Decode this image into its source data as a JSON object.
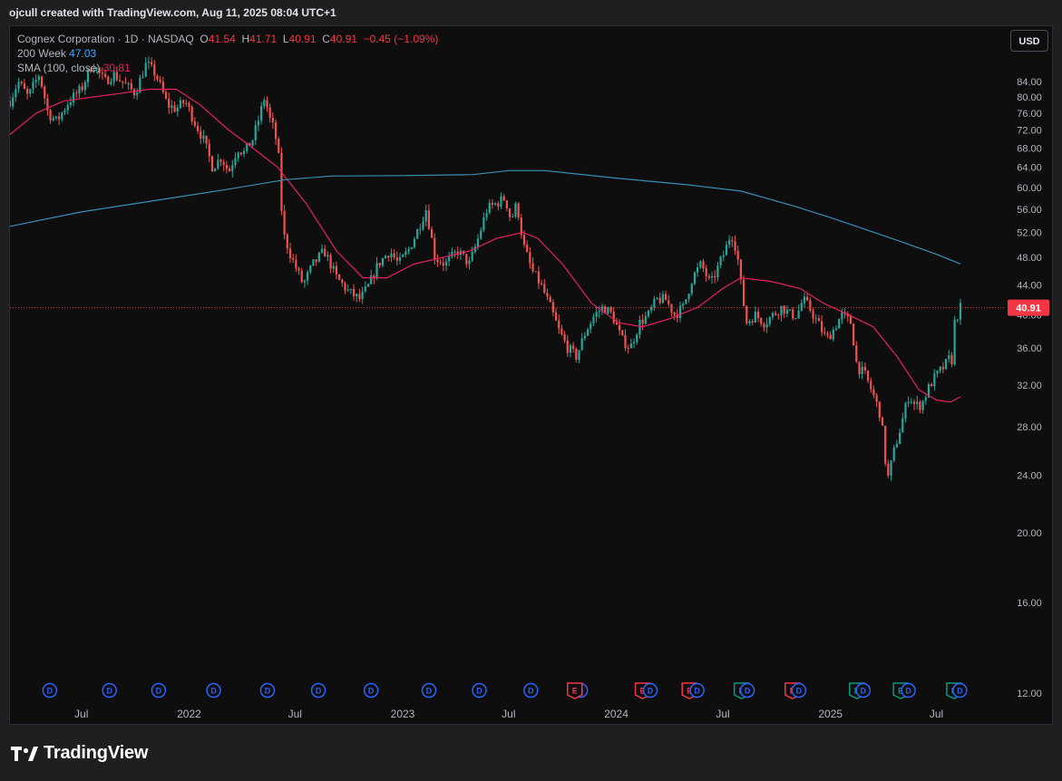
{
  "header": {
    "attribution": "ojcull created with TradingView.com, Aug 11, 2025 08:04 UTC+1"
  },
  "legend": {
    "symbol": "Cognex Corporation · 1D · NASDAQ",
    "open_label": "O",
    "open": "41.54",
    "high_label": "H",
    "high": "41.71",
    "low_label": "L",
    "low": "40.91",
    "close_label": "C",
    "close": "40.91",
    "change": "−0.45 (−1.09%)",
    "ma200_label": "200 Week",
    "ma200_value": "47.03",
    "sma_label": "SMA (100, close)",
    "sma_value": "30.81"
  },
  "toolbar": {
    "currency": "USD"
  },
  "footer": {
    "brand": "TradingView"
  },
  "colors": {
    "up": "#26a69a",
    "down": "#ef5350",
    "sma": "#e91e63",
    "ma200": "#3a8fb7",
    "last_price": "#f23645",
    "dividend": "#2962ff",
    "earnings_up": "#089981",
    "earnings_down": "#f23645"
  },
  "chart_data": {
    "type": "candlestick",
    "symbol": "Cognex Corporation",
    "interval": "1D",
    "exchange": "NASDAQ",
    "currency": "USD",
    "x_range": [
      "2021-03-01",
      "2025-08-11"
    ],
    "y_scale": "log",
    "ylim": [
      12,
      88
    ],
    "y_ticks": [
      12,
      16,
      20,
      24,
      28,
      32,
      36,
      40,
      44,
      48,
      52,
      56,
      60,
      64,
      68,
      72,
      76,
      80,
      84
    ],
    "x_ticks": [
      {
        "label": "Jul",
        "date": "2021-07-01"
      },
      {
        "label": "2022",
        "date": "2022-01-01"
      },
      {
        "label": "Jul",
        "date": "2022-07-01"
      },
      {
        "label": "2023",
        "date": "2023-01-01"
      },
      {
        "label": "Jul",
        "date": "2023-07-01"
      },
      {
        "label": "2024",
        "date": "2024-01-01"
      },
      {
        "label": "Jul",
        "date": "2024-07-01"
      },
      {
        "label": "2025",
        "date": "2025-01-01"
      },
      {
        "label": "Jul",
        "date": "2025-07-01"
      }
    ],
    "last_price": 40.91,
    "last_price_label": "40.91",
    "price_path": [
      [
        "2021-03-01",
        79
      ],
      [
        "2021-03-15",
        84
      ],
      [
        "2021-04-01",
        80
      ],
      [
        "2021-04-20",
        86
      ],
      [
        "2021-05-05",
        76
      ],
      [
        "2021-05-20",
        74
      ],
      [
        "2021-06-10",
        79
      ],
      [
        "2021-07-01",
        82
      ],
      [
        "2021-07-20",
        89
      ],
      [
        "2021-08-10",
        84
      ],
      [
        "2021-08-25",
        86
      ],
      [
        "2021-09-15",
        83
      ],
      [
        "2021-10-01",
        81
      ],
      [
        "2021-10-20",
        89
      ],
      [
        "2021-11-05",
        86
      ],
      [
        "2021-11-25",
        78
      ],
      [
        "2021-12-10",
        77
      ],
      [
        "2021-12-25",
        79
      ],
      [
        "2022-01-10",
        74
      ],
      [
        "2022-01-25",
        70
      ],
      [
        "2022-02-10",
        64
      ],
      [
        "2022-02-25",
        66
      ],
      [
        "2022-03-10",
        63
      ],
      [
        "2022-03-25",
        68
      ],
      [
        "2022-04-05",
        67
      ],
      [
        "2022-04-20",
        70
      ],
      [
        "2022-05-01",
        75
      ],
      [
        "2022-05-10",
        80
      ],
      [
        "2022-05-20",
        74
      ],
      [
        "2022-05-27",
        72
      ],
      [
        "2022-06-03",
        66
      ],
      [
        "2022-06-10",
        52
      ],
      [
        "2022-06-25",
        48
      ],
      [
        "2022-07-15",
        44
      ],
      [
        "2022-08-01",
        47
      ],
      [
        "2022-08-20",
        49
      ],
      [
        "2022-09-10",
        45
      ],
      [
        "2022-10-01",
        43
      ],
      [
        "2022-10-20",
        42
      ],
      [
        "2022-11-05",
        44
      ],
      [
        "2022-11-20",
        47
      ],
      [
        "2022-12-10",
        49
      ],
      [
        "2022-12-25",
        47
      ],
      [
        "2023-01-10",
        49
      ],
      [
        "2023-01-25",
        52
      ],
      [
        "2023-02-10",
        56
      ],
      [
        "2023-02-25",
        48
      ],
      [
        "2023-03-15",
        47
      ],
      [
        "2023-04-05",
        49
      ],
      [
        "2023-04-25",
        47
      ],
      [
        "2023-05-10",
        51
      ],
      [
        "2023-05-25",
        56
      ],
      [
        "2023-06-10",
        57
      ],
      [
        "2023-06-25",
        58
      ],
      [
        "2023-07-05",
        54
      ],
      [
        "2023-07-15",
        57
      ],
      [
        "2023-07-26",
        50
      ],
      [
        "2023-08-10",
        46
      ],
      [
        "2023-08-25",
        44
      ],
      [
        "2023-09-10",
        41
      ],
      [
        "2023-09-25",
        38
      ],
      [
        "2023-10-10",
        36
      ],
      [
        "2023-10-25",
        35
      ],
      [
        "2023-11-10",
        38
      ],
      [
        "2023-11-25",
        40
      ],
      [
        "2023-12-10",
        41
      ],
      [
        "2023-12-25",
        40
      ],
      [
        "2024-01-10",
        37
      ],
      [
        "2024-01-25",
        36
      ],
      [
        "2024-02-10",
        39
      ],
      [
        "2024-02-25",
        40
      ],
      [
        "2024-03-10",
        42
      ],
      [
        "2024-03-25",
        42
      ],
      [
        "2024-04-10",
        40
      ],
      [
        "2024-04-25",
        41
      ],
      [
        "2024-05-10",
        45
      ],
      [
        "2024-05-25",
        47
      ],
      [
        "2024-06-10",
        44
      ],
      [
        "2024-06-25",
        47
      ],
      [
        "2024-07-05",
        49
      ],
      [
        "2024-07-15",
        52
      ],
      [
        "2024-07-25",
        49
      ],
      [
        "2024-08-01",
        44
      ],
      [
        "2024-08-10",
        39
      ],
      [
        "2024-08-25",
        40
      ],
      [
        "2024-09-10",
        39
      ],
      [
        "2024-09-25",
        40
      ],
      [
        "2024-10-10",
        41
      ],
      [
        "2024-10-25",
        40
      ],
      [
        "2024-11-05",
        40
      ],
      [
        "2024-11-15",
        42
      ],
      [
        "2024-11-25",
        41
      ],
      [
        "2024-12-10",
        39
      ],
      [
        "2024-12-25",
        37
      ],
      [
        "2025-01-05",
        38
      ],
      [
        "2025-01-20",
        40
      ],
      [
        "2025-02-05",
        39
      ],
      [
        "2025-02-15",
        34
      ],
      [
        "2025-03-01",
        33
      ],
      [
        "2025-03-15",
        31
      ],
      [
        "2025-03-28",
        29
      ],
      [
        "2025-04-08",
        23.5
      ],
      [
        "2025-04-20",
        26
      ],
      [
        "2025-05-01",
        28
      ],
      [
        "2025-05-15",
        31
      ],
      [
        "2025-05-25",
        30
      ],
      [
        "2025-06-05",
        30
      ],
      [
        "2025-06-20",
        32
      ],
      [
        "2025-07-01",
        33
      ],
      [
        "2025-07-15",
        34
      ],
      [
        "2025-07-25",
        35
      ],
      [
        "2025-07-31",
        34
      ],
      [
        "2025-08-01",
        39
      ],
      [
        "2025-08-11",
        40.91
      ]
    ],
    "series": [
      {
        "name": "SMA (100, close)",
        "points": [
          [
            "2021-03-01",
            71
          ],
          [
            "2021-04-15",
            76
          ],
          [
            "2021-06-01",
            79
          ],
          [
            "2021-07-20",
            80
          ],
          [
            "2021-09-10",
            81
          ],
          [
            "2021-10-25",
            82
          ],
          [
            "2021-12-10",
            82
          ],
          [
            "2022-01-20",
            78
          ],
          [
            "2022-03-10",
            72
          ],
          [
            "2022-04-20",
            68
          ],
          [
            "2022-06-01",
            64
          ],
          [
            "2022-07-20",
            57
          ],
          [
            "2022-09-10",
            49
          ],
          [
            "2022-10-25",
            45
          ],
          [
            "2022-12-05",
            45
          ],
          [
            "2023-01-20",
            47
          ],
          [
            "2023-03-10",
            48
          ],
          [
            "2023-04-25",
            49
          ],
          [
            "2023-06-10",
            51
          ],
          [
            "2023-07-25",
            52
          ],
          [
            "2023-08-20",
            51
          ],
          [
            "2023-10-01",
            47
          ],
          [
            "2023-11-20",
            41.5
          ],
          [
            "2024-01-05",
            39
          ],
          [
            "2024-02-15",
            38.5
          ],
          [
            "2024-04-01",
            39.5
          ],
          [
            "2024-05-20",
            41
          ],
          [
            "2024-07-01",
            43.5
          ],
          [
            "2024-08-01",
            45
          ],
          [
            "2024-09-20",
            44.5
          ],
          [
            "2024-11-10",
            43.5
          ],
          [
            "2024-12-20",
            41.5
          ],
          [
            "2025-02-01",
            40
          ],
          [
            "2025-03-15",
            38.5
          ],
          [
            "2025-04-25",
            35
          ],
          [
            "2025-06-01",
            31.5
          ],
          [
            "2025-07-01",
            30.5
          ],
          [
            "2025-07-25",
            30.3
          ],
          [
            "2025-08-11",
            30.81
          ]
        ]
      },
      {
        "name": "200 Week",
        "points": [
          [
            "2021-03-01",
            53
          ],
          [
            "2021-07-01",
            55.5
          ],
          [
            "2021-12-01",
            58
          ],
          [
            "2022-03-01",
            59.5
          ],
          [
            "2022-06-15",
            61.5
          ],
          [
            "2022-09-01",
            62.2
          ],
          [
            "2023-01-01",
            62.3
          ],
          [
            "2023-05-01",
            62.5
          ],
          [
            "2023-07-01",
            63.3
          ],
          [
            "2023-09-01",
            63.3
          ],
          [
            "2024-01-01",
            61.8
          ],
          [
            "2024-05-01",
            60.5
          ],
          [
            "2024-08-01",
            59.3
          ],
          [
            "2024-11-01",
            56.5
          ],
          [
            "2025-01-01",
            54.5
          ],
          [
            "2025-03-01",
            52.5
          ],
          [
            "2025-05-01",
            50.5
          ],
          [
            "2025-07-01",
            48.5
          ],
          [
            "2025-08-11",
            47.03
          ]
        ]
      }
    ],
    "events": [
      {
        "type": "D",
        "date": "2021-05-08"
      },
      {
        "type": "D",
        "date": "2021-08-18"
      },
      {
        "type": "D",
        "date": "2021-11-10"
      },
      {
        "type": "D",
        "date": "2022-02-12"
      },
      {
        "type": "D",
        "date": "2022-05-15"
      },
      {
        "type": "D",
        "date": "2022-08-10"
      },
      {
        "type": "D",
        "date": "2022-11-08"
      },
      {
        "type": "D",
        "date": "2023-02-15"
      },
      {
        "type": "D",
        "date": "2023-05-12"
      },
      {
        "type": "D",
        "date": "2023-08-08"
      },
      {
        "type": "D",
        "date": "2023-11-01"
      },
      {
        "type": "E",
        "date": "2023-10-22",
        "trend": "down"
      },
      {
        "type": "E",
        "date": "2024-02-15",
        "trend": "down"
      },
      {
        "type": "D",
        "date": "2024-02-28"
      },
      {
        "type": "E",
        "date": "2024-05-05",
        "trend": "down"
      },
      {
        "type": "D",
        "date": "2024-05-18"
      },
      {
        "type": "E",
        "date": "2024-08-02",
        "trend": "up"
      },
      {
        "type": "D",
        "date": "2024-08-12"
      },
      {
        "type": "E",
        "date": "2024-10-28",
        "trend": "down"
      },
      {
        "type": "D",
        "date": "2024-11-08"
      },
      {
        "type": "E",
        "date": "2025-02-15",
        "trend": "up"
      },
      {
        "type": "D",
        "date": "2025-02-26"
      },
      {
        "type": "E",
        "date": "2025-05-01",
        "trend": "up"
      },
      {
        "type": "D",
        "date": "2025-05-14"
      },
      {
        "type": "E",
        "date": "2025-07-31",
        "trend": "up"
      },
      {
        "type": "D",
        "date": "2025-08-10"
      }
    ]
  }
}
